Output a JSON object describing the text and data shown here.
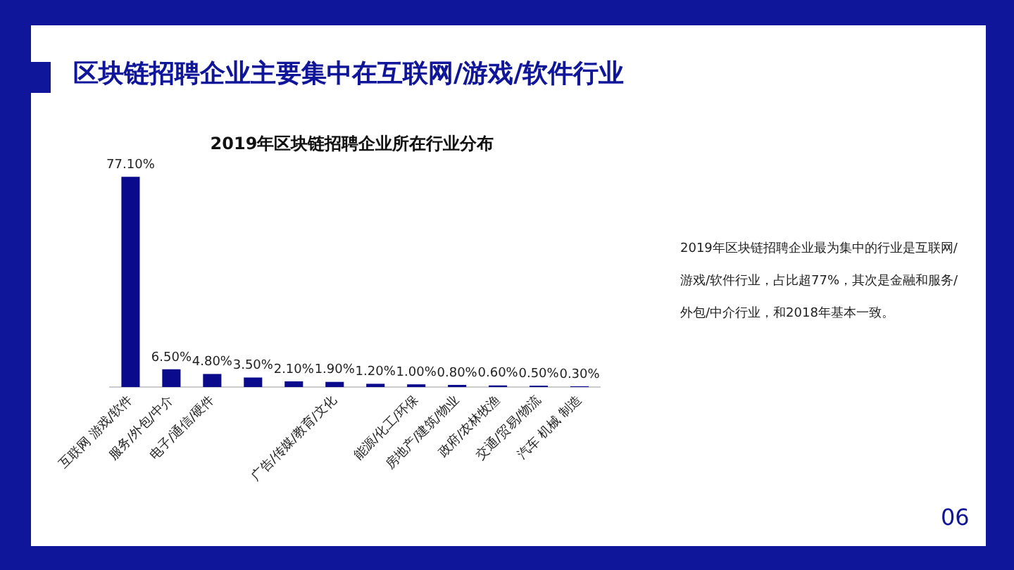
{
  "chart_data": {
    "type": "bar",
    "title": "区块链招聘企业主要集中在互联网/游戏/软件行业",
    "subtitle": "2019年区块链招聘企业所在行业分布",
    "categories": [
      "互联网 游戏/软件",
      "服务/外包/中介",
      "电子/通信/硬件",
      null,
      null,
      "广告/传媒/教育/文化",
      null,
      "能源/化工/环保",
      "房地产/建筑/物业",
      "政府/农林牧渔",
      "交通/贸易/物流",
      "汽车 机械 制造"
    ],
    "values": [
      77.1,
      6.5,
      4.8,
      3.5,
      2.1,
      1.9,
      1.2,
      1.0,
      0.8,
      0.6,
      0.5,
      0.3
    ],
    "value_labels": [
      "77.10%",
      "6.50%",
      "4.80%",
      "3.50%",
      "2.10%",
      "1.90%",
      "1.20%",
      "1.00%",
      "0.80%",
      "0.60%",
      "0.50%",
      "0.30%"
    ],
    "color": "#0a0a8c",
    "grid": false,
    "legend": false,
    "tick_labels": "x",
    "annotations": [
      "2019年区块链招聘企业最为集中的行业是互联网/游戏/软件行业，占比超77%，其次是金融和服务/外包/中介行业，和2018年基本一致。",
      "06"
    ]
  }
}
